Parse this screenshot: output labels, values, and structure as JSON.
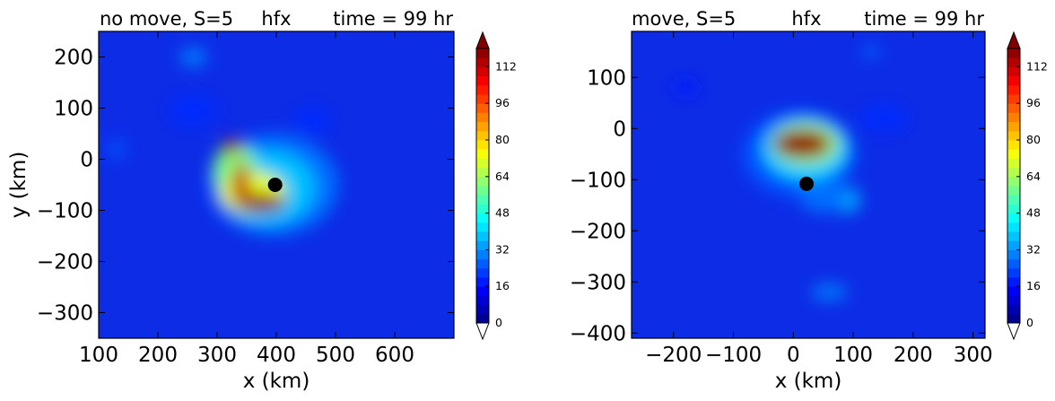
{
  "chart_data": [
    {
      "type": "heatmap",
      "title_left": "no move, S=5",
      "title_center": "hfx",
      "title_right": "time = 99 hr",
      "title_colors": {
        "left": "#ff0000",
        "center": "#000000",
        "right": "#0000ff"
      },
      "xlabel": "x (km)",
      "ylabel": "y (km)",
      "xlim": [
        100,
        700
      ],
      "ylim": [
        -350,
        250
      ],
      "xticks": [
        100,
        200,
        300,
        400,
        500,
        600
      ],
      "yticks": [
        -300,
        -200,
        -100,
        0,
        100,
        200
      ],
      "marker": {
        "x": 398,
        "y": -50
      },
      "colorbar": {
        "min": 0,
        "max": 120,
        "ticks": [
          0,
          16,
          32,
          48,
          64,
          80,
          96,
          112
        ],
        "extend": "both",
        "colormap": "jet"
      },
      "features": [
        {
          "x": 395,
          "y": -50,
          "rx": 110,
          "ry": 100,
          "value": 28
        },
        {
          "x": 385,
          "y": -55,
          "rx": 80,
          "ry": 72,
          "value": 38
        },
        {
          "x": 330,
          "y": -20,
          "rx": 35,
          "ry": 50,
          "value": 60
        },
        {
          "x": 360,
          "y": -65,
          "rx": 55,
          "ry": 40,
          "value": 72
        },
        {
          "x": 325,
          "y": 25,
          "rx": 15,
          "ry": 15,
          "value": 115
        },
        {
          "x": 340,
          "y": -50,
          "rx": 14,
          "ry": 45,
          "value": 112
        },
        {
          "x": 375,
          "y": -85,
          "rx": 40,
          "ry": 18,
          "value": 118
        },
        {
          "x": 260,
          "y": 200,
          "rx": 22,
          "ry": 18,
          "value": 30
        },
        {
          "x": 130,
          "y": 20,
          "rx": 15,
          "ry": 18,
          "value": 25
        },
        {
          "x": 460,
          "y": 75,
          "rx": 30,
          "ry": 25,
          "value": 20
        },
        {
          "x": 260,
          "y": 95,
          "rx": 40,
          "ry": 30,
          "value": 20
        }
      ]
    },
    {
      "type": "heatmap",
      "title_left": "move, S=5",
      "title_center": "hfx",
      "title_right": "time = 99 hr",
      "title_colors": {
        "left": "#ff0000",
        "center": "#000000",
        "right": "#0000ff"
      },
      "xlabel": "x (km)",
      "ylabel": "",
      "xlim": [
        -270,
        320
      ],
      "ylim": [
        -410,
        190
      ],
      "xticks": [
        -200,
        -100,
        0,
        100,
        200,
        300
      ],
      "yticks": [
        -400,
        -300,
        -200,
        -100,
        0,
        100
      ],
      "marker": {
        "x": 22,
        "y": -108
      },
      "colorbar": {
        "min": 0,
        "max": 120,
        "ticks": [
          0,
          16,
          32,
          48,
          64,
          80,
          96,
          112
        ],
        "extend": "both",
        "colormap": "jet"
      },
      "features": [
        {
          "x": 10,
          "y": -50,
          "rx": 95,
          "ry": 85,
          "value": 25
        },
        {
          "x": 20,
          "y": -40,
          "rx": 70,
          "ry": 60,
          "value": 40
        },
        {
          "x": 20,
          "y": -30,
          "rx": 55,
          "ry": 40,
          "value": 65
        },
        {
          "x": 15,
          "y": -30,
          "rx": 48,
          "ry": 28,
          "value": 118
        },
        {
          "x": 90,
          "y": -140,
          "rx": 22,
          "ry": 25,
          "value": 35
        },
        {
          "x": 50,
          "y": -130,
          "rx": 40,
          "ry": 35,
          "value": 28
        },
        {
          "x": 60,
          "y": -320,
          "rx": 30,
          "ry": 15,
          "value": 30
        },
        {
          "x": 130,
          "y": 150,
          "rx": 15,
          "ry": 10,
          "value": 28
        },
        {
          "x": -180,
          "y": 80,
          "rx": 20,
          "ry": 15,
          "value": 18
        },
        {
          "x": 150,
          "y": 20,
          "rx": 40,
          "ry": 25,
          "value": 20
        }
      ]
    }
  ]
}
